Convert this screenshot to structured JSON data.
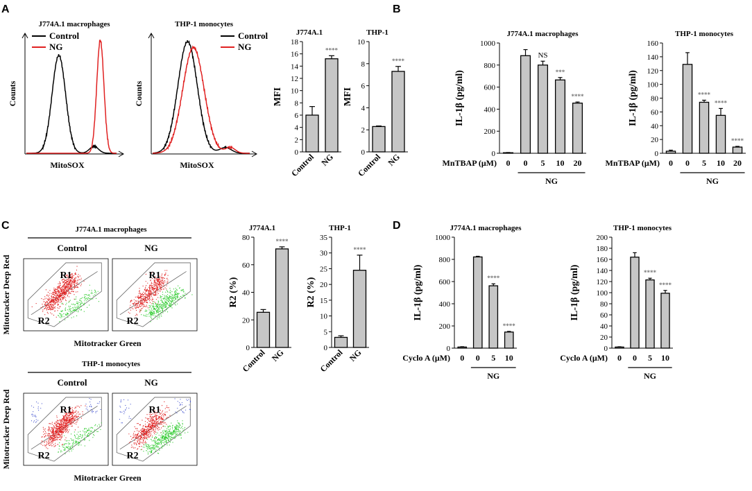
{
  "panels": {
    "A": {
      "letter": "A"
    },
    "B": {
      "letter": "B"
    },
    "C": {
      "letter": "C"
    },
    "D": {
      "letter": "D"
    }
  },
  "chart_data": [
    {
      "id": "A-hist-j774",
      "type": "line",
      "title": "J774A.1 macrophages",
      "xlabel": "MitoSOX",
      "ylabel": "Counts",
      "series": [
        {
          "name": "Control",
          "color": "#000000"
        },
        {
          "name": "NG",
          "color": "#e02020"
        }
      ]
    },
    {
      "id": "A-hist-thp1",
      "type": "line",
      "title": "THP-1 monocytes",
      "xlabel": "MitoSOX",
      "ylabel": "Counts",
      "series": [
        {
          "name": "Control",
          "color": "#000000"
        },
        {
          "name": "NG",
          "color": "#e02020"
        }
      ]
    },
    {
      "id": "A-mfi-j774",
      "type": "bar",
      "title": "J774A.1",
      "ylabel": "MFI",
      "ylim": [
        0,
        18
      ],
      "yticks": [
        "0",
        "2",
        "4",
        "6",
        "8",
        "10",
        "12",
        "14",
        "16",
        "18"
      ],
      "categories": [
        "Control",
        "NG"
      ],
      "values": [
        6,
        15.2
      ],
      "errors": [
        1.4,
        0.5
      ],
      "sig": [
        "",
        "****"
      ]
    },
    {
      "id": "A-mfi-thp1",
      "type": "bar",
      "title": "THP-1",
      "ylabel": "MFI",
      "ylim": [
        0,
        10
      ],
      "yticks": [
        "0",
        "2",
        "4",
        "6",
        "8",
        "10"
      ],
      "categories": [
        "Control",
        "NG"
      ],
      "values": [
        2.3,
        7.3
      ],
      "errors": [
        0.05,
        0.45
      ],
      "sig": [
        "",
        "****"
      ]
    },
    {
      "id": "B-j774",
      "type": "bar",
      "title": "J774A.1 macrophages",
      "ylabel": "IL-1β (pg/ml)",
      "ylim": [
        0,
        1000
      ],
      "yticks": [
        "0",
        "200",
        "400",
        "600",
        "800",
        "1000"
      ],
      "categories": [
        "0",
        "0",
        "5",
        "10",
        "20"
      ],
      "values": [
        5,
        885,
        800,
        665,
        455
      ],
      "errors": [
        2,
        55,
        35,
        22,
        10
      ],
      "sig": [
        "",
        "",
        "NS",
        "***",
        "****"
      ],
      "xlabel": "MnTBAP (μM)",
      "group_label": "NG"
    },
    {
      "id": "B-thp1",
      "type": "bar",
      "title": "THP-1 monocytes",
      "ylabel": "IL-1β (pg/ml)",
      "ylim": [
        0,
        160
      ],
      "yticks": [
        "0",
        "20",
        "40",
        "60",
        "80",
        "100",
        "120",
        "140",
        "160"
      ],
      "categories": [
        "0",
        "0",
        "5",
        "10",
        "20"
      ],
      "values": [
        3,
        129,
        74,
        55,
        9
      ],
      "errors": [
        1.5,
        17,
        3,
        10,
        1
      ],
      "sig": [
        "",
        "",
        "****",
        "****",
        "****"
      ],
      "xlabel": "MnTBAP (μM)",
      "group_label": "NG"
    },
    {
      "id": "C-flow",
      "type": "scatter",
      "groups": [
        {
          "title": "J774A.1 macrophages",
          "conditions": [
            "Control",
            "NG"
          ]
        },
        {
          "title": "THP-1 monocytes",
          "conditions": [
            "Control",
            "NG"
          ]
        }
      ],
      "gates": [
        "R1",
        "R2"
      ],
      "xlabel": "Mitotracker Green",
      "ylabel": "Mitotracker Deep Red"
    },
    {
      "id": "C-j774",
      "type": "bar",
      "title": "J774A.1",
      "ylabel": "R2 (%)",
      "ylim": [
        0,
        80
      ],
      "yticks": [
        "0",
        "20",
        "40",
        "60",
        "80"
      ],
      "categories": [
        "Control",
        "NG"
      ],
      "values": [
        25.5,
        71.5
      ],
      "errors": [
        2,
        1.5
      ],
      "sig": [
        "",
        "****"
      ]
    },
    {
      "id": "C-thp1",
      "type": "bar",
      "title": "THP-1",
      "ylabel": "R2 (%)",
      "ylim": [
        0,
        35
      ],
      "yticks": [
        "0",
        "5",
        "10",
        "15",
        "20",
        "25",
        "30",
        "35"
      ],
      "categories": [
        "Control",
        "NG"
      ],
      "values": [
        3.2,
        24.5
      ],
      "errors": [
        0.5,
        4.8
      ],
      "sig": [
        "",
        "****"
      ]
    },
    {
      "id": "D-j774",
      "type": "bar",
      "title": "J774A.1 macrophages",
      "ylabel": "IL-1β (pg/ml)",
      "ylim": [
        0,
        1000
      ],
      "yticks": [
        "0",
        "200",
        "400",
        "600",
        "800",
        "1000"
      ],
      "categories": [
        "0",
        "0",
        "5",
        "10"
      ],
      "values": [
        10,
        822,
        562,
        145
      ],
      "errors": [
        3,
        6,
        18,
        6
      ],
      "sig": [
        "",
        "",
        "****",
        "****"
      ],
      "xlabel": "Cyclo A (μM)",
      "group_label": "NG"
    },
    {
      "id": "D-thp1",
      "type": "bar",
      "title": "THP-1 monocytes",
      "ylabel": "IL-1β (pg/ml)",
      "ylim": [
        0,
        200
      ],
      "yticks": [
        "0",
        "20",
        "40",
        "60",
        "80",
        "100",
        "120",
        "140",
        "160",
        "180",
        "200"
      ],
      "categories": [
        "0",
        "0",
        "5",
        "10"
      ],
      "values": [
        2,
        164,
        123,
        99
      ],
      "errors": [
        0.5,
        8,
        3,
        5
      ],
      "sig": [
        "",
        "",
        "****",
        "****"
      ],
      "xlabel": "Cyclo A (μM)",
      "group_label": "NG"
    }
  ]
}
